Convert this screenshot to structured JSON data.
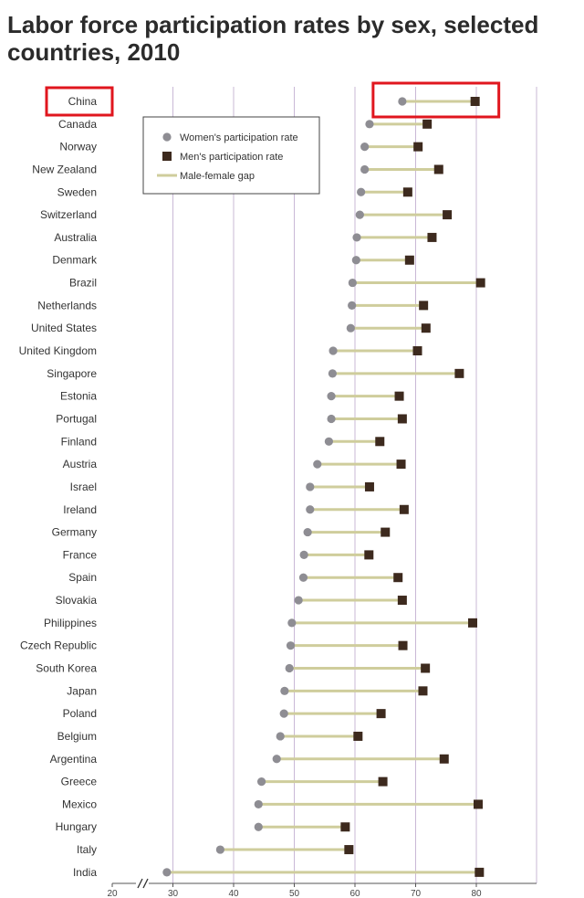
{
  "title": "Labor force participation rates by sex, selected countries, 2010",
  "chart_data": {
    "type": "dot",
    "title": "Labor force participation rates by sex, selected countries, 2010",
    "xlabel": "",
    "ylabel": "",
    "xlim": [
      20,
      90
    ],
    "x_ticks": [
      20,
      30,
      40,
      50,
      60,
      70,
      80
    ],
    "axis_break": true,
    "grid": true,
    "legend_position": "top-left",
    "highlighted": "China",
    "colors": {
      "women": "#8e8d93",
      "men": "#3d2a1e",
      "gap": "#cfcd9c",
      "grid": "#c9b8d6",
      "highlight": "#e0161e"
    },
    "legend": [
      {
        "key": "women",
        "label": "Women's participation rate"
      },
      {
        "key": "men",
        "label": "Men's participation rate"
      },
      {
        "key": "gap",
        "label": "Male-female gap"
      }
    ],
    "categories": [
      "China",
      "Canada",
      "Norway",
      "New Zealand",
      "Sweden",
      "Switzerland",
      "Australia",
      "Denmark",
      "Brazil",
      "Netherlands",
      "United States",
      "United Kingdom",
      "Singapore",
      "Estonia",
      "Portugal",
      "Finland",
      "Austria",
      "Israel",
      "Ireland",
      "Germany",
      "France",
      "Spain",
      "Slovakia",
      "Philippines",
      "Czech Republic",
      "South Korea",
      "Japan",
      "Poland",
      "Belgium",
      "Argentina",
      "Greece",
      "Mexico",
      "Hungary",
      "Italy",
      "India"
    ],
    "series": [
      {
        "name": "Women's participation rate",
        "values": [
          67.8,
          62.4,
          61.6,
          61.6,
          61.0,
          60.8,
          60.3,
          60.2,
          59.6,
          59.5,
          59.3,
          56.4,
          56.3,
          56.1,
          56.1,
          55.7,
          53.8,
          52.6,
          52.6,
          52.2,
          51.6,
          51.5,
          50.7,
          49.6,
          49.4,
          49.2,
          48.4,
          48.3,
          47.7,
          47.1,
          44.6,
          44.1,
          44.1,
          37.8,
          29.0
        ]
      },
      {
        "name": "Men's participation rate",
        "values": [
          79.8,
          71.9,
          70.4,
          73.8,
          68.7,
          75.2,
          72.7,
          69.0,
          80.7,
          71.3,
          71.7,
          70.3,
          77.2,
          67.3,
          67.8,
          64.1,
          67.6,
          62.4,
          68.1,
          65.0,
          62.3,
          67.1,
          67.8,
          79.4,
          67.9,
          71.6,
          71.2,
          64.3,
          60.5,
          74.7,
          64.6,
          80.3,
          58.4,
          59.0,
          80.5
        ]
      }
    ]
  }
}
